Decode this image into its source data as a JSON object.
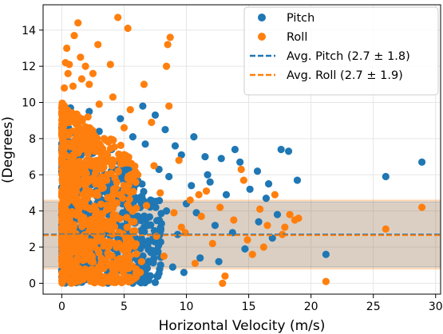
{
  "chart_data": {
    "type": "scatter",
    "xlabel": "Horizontal Velocity (m/s)",
    "ylabel": "(Degrees)",
    "xlim": [
      -1.5,
      30.4
    ],
    "ylim": [
      -0.6,
      15.4
    ],
    "xticks": [
      "0",
      "5",
      "10",
      "15",
      "20",
      "25",
      "30"
    ],
    "yticks": [
      "0",
      "2",
      "4",
      "6",
      "8",
      "10",
      "12",
      "14"
    ],
    "grid": true,
    "legend_position": "top-right",
    "colors": {
      "pitch": "#1f77b4",
      "roll": "#ff7f0e"
    },
    "series": [
      {
        "name": "Pitch",
        "kind": "scatter",
        "color": "#1f77b4",
        "points": [
          [
            28.9,
            6.7
          ],
          [
            26.0,
            5.9
          ],
          [
            21.2,
            1.6
          ],
          [
            18.9,
            5.7
          ],
          [
            18.2,
            7.3
          ],
          [
            17.6,
            7.4
          ],
          [
            17.3,
            3.8
          ],
          [
            16.9,
            2.5
          ],
          [
            16.4,
            4.7
          ],
          [
            15.8,
            3.4
          ],
          [
            15.1,
            5.2
          ],
          [
            14.7,
            1.9
          ],
          [
            14.3,
            6.7
          ],
          [
            13.7,
            2.8
          ],
          [
            13.2,
            4.9
          ],
          [
            12.8,
            6.9
          ],
          [
            12.3,
            3.2
          ],
          [
            11.9,
            5.6
          ],
          [
            11.5,
            7.0
          ],
          [
            11.1,
            1.4
          ],
          [
            10.8,
            3.9
          ],
          [
            10.4,
            5.4
          ],
          [
            10.0,
            4.4
          ],
          [
            9.6,
            7.1
          ],
          [
            9.3,
            2.7
          ],
          [
            8.9,
            0.9
          ],
          [
            8.6,
            5.9
          ],
          [
            8.3,
            8.5
          ],
          [
            8.0,
            3.3
          ],
          [
            7.8,
            6.3
          ],
          [
            7.5,
            9.3
          ],
          [
            7.3,
            1.8
          ],
          [
            7.0,
            4.5
          ],
          [
            6.7,
            7.7
          ],
          [
            6.5,
            9.8
          ],
          [
            6.2,
            2.4
          ],
          [
            6.0,
            5.5
          ],
          [
            5.7,
            8.1
          ],
          [
            5.4,
            0.5
          ],
          [
            5.2,
            3.6
          ],
          [
            4.9,
            6.8
          ],
          [
            4.7,
            9.1
          ],
          [
            4.4,
            1.9
          ],
          [
            4.2,
            4.8
          ],
          [
            4.0,
            7.4
          ],
          [
            3.7,
            0.3
          ],
          [
            3.5,
            3.1
          ],
          [
            3.3,
            5.9
          ],
          [
            3.0,
            8.4
          ],
          [
            2.8,
            2.0
          ],
          [
            2.6,
            4.2
          ],
          [
            2.4,
            6.4
          ],
          [
            2.2,
            9.5
          ],
          [
            2.0,
            0.8
          ],
          [
            1.8,
            3.5
          ],
          [
            1.6,
            5.4
          ],
          [
            1.4,
            7.8
          ],
          [
            1.2,
            1.2
          ],
          [
            1.0,
            2.9
          ],
          [
            0.8,
            4.6
          ],
          [
            0.6,
            6.7
          ],
          [
            0.4,
            8.8
          ],
          [
            0.3,
            0.1
          ],
          [
            0.2,
            2.2
          ],
          [
            0.1,
            3.8
          ],
          [
            0.0,
            5.3
          ],
          [
            12.6,
            1.2
          ],
          [
            9.8,
            0.6
          ],
          [
            15.7,
            6.2
          ],
          [
            16.6,
            5.5
          ],
          [
            13.9,
            7.4
          ],
          [
            10.6,
            8.1
          ],
          [
            9.1,
            7.6
          ],
          [
            11.7,
            6.0
          ],
          [
            8.4,
            4.0
          ],
          [
            6.9,
            3.2
          ],
          [
            5.6,
            2.2
          ],
          [
            4.6,
            0.9
          ],
          [
            3.9,
            2.6
          ],
          [
            3.2,
            1.4
          ],
          [
            2.5,
            7.2
          ],
          [
            1.9,
            8.6
          ],
          [
            1.3,
            9.0
          ],
          [
            0.7,
            9.7
          ]
        ]
      },
      {
        "name": "Roll",
        "kind": "scatter",
        "color": "#ff7f0e",
        "points": [
          [
            28.9,
            4.2
          ],
          [
            26.0,
            3.0
          ],
          [
            21.2,
            0.1
          ],
          [
            19.0,
            3.6
          ],
          [
            18.3,
            3.8
          ],
          [
            17.7,
            2.7
          ],
          [
            17.1,
            4.9
          ],
          [
            16.5,
            3.2
          ],
          [
            15.9,
            4.1
          ],
          [
            15.3,
            1.6
          ],
          [
            14.9,
            2.4
          ],
          [
            14.4,
            6.3
          ],
          [
            13.8,
            3.5
          ],
          [
            13.1,
            0.4
          ],
          [
            12.7,
            4.2
          ],
          [
            12.1,
            2.2
          ],
          [
            11.6,
            5.1
          ],
          [
            11.2,
            3.7
          ],
          [
            10.7,
            1.1
          ],
          [
            10.3,
            4.6
          ],
          [
            9.9,
            2.8
          ],
          [
            9.4,
            6.8
          ],
          [
            9.0,
            3.9
          ],
          [
            8.7,
            13.6
          ],
          [
            8.5,
            13.2
          ],
          [
            8.4,
            12.0
          ],
          [
            8.6,
            9.8
          ],
          [
            8.2,
            1.5
          ],
          [
            7.9,
            5.0
          ],
          [
            7.6,
            2.6
          ],
          [
            7.2,
            8.9
          ],
          [
            6.8,
            4.3
          ],
          [
            6.6,
            11.0
          ],
          [
            6.4,
            1.2
          ],
          [
            6.1,
            6.0
          ],
          [
            5.8,
            3.4
          ],
          [
            5.5,
            9.6
          ],
          [
            5.3,
            14.1
          ],
          [
            5.1,
            2.1
          ],
          [
            4.8,
            7.0
          ],
          [
            4.5,
            14.7
          ],
          [
            4.3,
            4.4
          ],
          [
            4.1,
            10.3
          ],
          [
            3.8,
            1.0
          ],
          [
            3.6,
            5.7
          ],
          [
            3.4,
            8.0
          ],
          [
            3.1,
            3.0
          ],
          [
            2.9,
            13.2
          ],
          [
            2.7,
            6.1
          ],
          [
            2.5,
            11.6
          ],
          [
            2.3,
            2.3
          ],
          [
            2.1,
            9.2
          ],
          [
            1.9,
            12.0
          ],
          [
            1.7,
            4.9
          ],
          [
            1.5,
            12.5
          ],
          [
            1.3,
            14.4
          ],
          [
            1.1,
            7.7
          ],
          [
            0.9,
            10.9
          ],
          [
            0.7,
            3.3
          ],
          [
            0.5,
            11.6
          ],
          [
            0.4,
            13.0
          ],
          [
            0.3,
            12.2
          ],
          [
            0.2,
            10.8
          ],
          [
            0.1,
            6.0
          ],
          [
            0.0,
            2.6
          ],
          [
            1.6,
            11.3
          ],
          [
            2.2,
            11.0
          ],
          [
            1.0,
            13.7
          ],
          [
            0.6,
            12.1
          ],
          [
            14.6,
            5.7
          ],
          [
            12.9,
            0.0
          ],
          [
            11.0,
            4.9
          ],
          [
            9.6,
            3.1
          ],
          [
            7.4,
            6.5
          ],
          [
            6.3,
            0.6
          ],
          [
            5.0,
            8.6
          ],
          [
            3.9,
            12.1
          ],
          [
            3.0,
            9.9
          ],
          [
            2.0,
            8.2
          ],
          [
            1.4,
            6.4
          ],
          [
            0.8,
            1.7
          ],
          [
            17.9,
            3.1
          ],
          [
            18.7,
            3.5
          ],
          [
            16.2,
            2.0
          ]
        ]
      }
    ],
    "dense_regions": [
      {
        "series": "Pitch",
        "x_range": [
          0,
          8
        ],
        "y_range": [
          0,
          9
        ]
      },
      {
        "series": "Roll",
        "x_range": [
          0,
          6
        ],
        "y_range": [
          0,
          10
        ]
      }
    ],
    "reference_lines": [
      {
        "name": "Avg. Pitch (2.7 ± 1.8)",
        "series": "Pitch",
        "mean": 2.7,
        "std": 1.8,
        "color": "#1f77b4"
      },
      {
        "name": "Avg. Roll (2.7 ± 1.9)",
        "series": "Roll",
        "mean": 2.7,
        "std": 1.9,
        "color": "#ff7f0e"
      }
    ],
    "legend": [
      {
        "label": "Pitch",
        "marker": "dot",
        "color": "#1f77b4"
      },
      {
        "label": "Roll",
        "marker": "dot",
        "color": "#ff7f0e"
      },
      {
        "label": "Avg. Pitch (2.7 ± 1.8)",
        "marker": "dashed-line",
        "color": "#1f77b4"
      },
      {
        "label": "Avg. Roll (2.7 ± 1.9)",
        "marker": "dashed-line",
        "color": "#ff7f0e"
      }
    ]
  }
}
